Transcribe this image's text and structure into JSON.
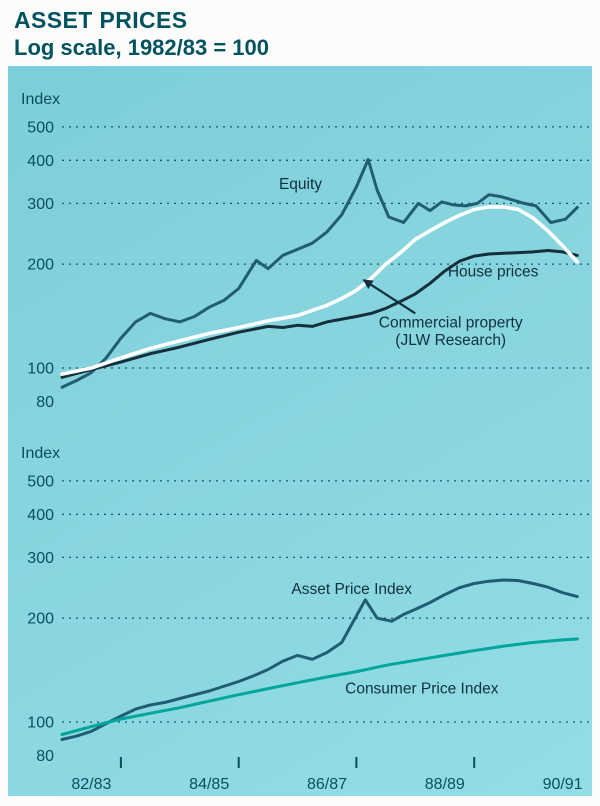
{
  "header": {
    "title": "ASSET PRICES",
    "subtitle": "Log scale, 1982/83 = 100"
  },
  "chart_data": {
    "type": "line",
    "title": "ASSET PRICES",
    "subtitle": "Log scale, 1982/83 = 100",
    "y_scale": "log",
    "base_note": "1982/83 = 100",
    "x_range_years": [
      0,
      9
    ],
    "x_tick_labels": [
      "82/83",
      "84/85",
      "86/87",
      "88/89",
      "90/91"
    ],
    "x_tick_positions": [
      0.5,
      2.5,
      4.5,
      6.5,
      8.5
    ],
    "x_minor_tick_positions": [
      1,
      3,
      5,
      7
    ],
    "legend_position": "inline-annotations",
    "grid": "dashed-horizontal",
    "panels": [
      {
        "id": "asset-classes",
        "ylabel": "Index",
        "ylim": [
          80,
          560
        ],
        "ytick_labels": [
          "500",
          "400",
          "300",
          "200",
          "100",
          "80"
        ],
        "ytick_values": [
          500,
          400,
          300,
          200,
          100,
          80
        ],
        "gridlines_at": [
          500,
          400,
          300,
          200,
          100
        ],
        "series": [
          {
            "name": "Equity",
            "color": "#215d72",
            "x": [
              0,
              0.25,
              0.5,
              0.75,
              1.0,
              1.25,
              1.5,
              1.75,
              2.0,
              2.25,
              2.5,
              2.75,
              3.0,
              3.3,
              3.5,
              3.75,
              4.0,
              4.25,
              4.5,
              4.75,
              5.0,
              5.2,
              5.35,
              5.55,
              5.8,
              6.05,
              6.25,
              6.45,
              6.65,
              6.85,
              7.05,
              7.25,
              7.45,
              7.65,
              7.85,
              8.05,
              8.3,
              8.55,
              8.75
            ],
            "values": [
              88,
              92,
              97,
              107,
              122,
              136,
              144,
              139,
              136,
              141,
              150,
              157,
              170,
              205,
              194,
              212,
              221,
              230,
              248,
              278,
              335,
              402,
              328,
              274,
              264,
              300,
              286,
              303,
              297,
              295,
              300,
              318,
              314,
              307,
              300,
              295,
              264,
              270,
              292
            ]
          },
          {
            "name": "House prices",
            "color": "#15303a",
            "x": [
              0,
              0.5,
              1.0,
              1.5,
              2.0,
              2.5,
              3.0,
              3.5,
              3.75,
              4.0,
              4.25,
              4.5,
              5.0,
              5.25,
              5.5,
              5.75,
              6.0,
              6.25,
              6.5,
              6.75,
              7.0,
              7.25,
              7.5,
              7.75,
              8.0,
              8.25,
              8.5,
              8.75
            ],
            "values": [
              94,
              99,
              104,
              110,
              115,
              121,
              127,
              132,
              131,
              133,
              132,
              136,
              141,
              144,
              149,
              156,
              164,
              176,
              191,
              204,
              211,
              214,
              215,
              216,
              217,
              219,
              217,
              212
            ]
          },
          {
            "name": "Commercial property (JLW Research)",
            "color": "#ffffff",
            "x": [
              0,
              0.5,
              1.0,
              1.5,
              2.0,
              2.5,
              3.0,
              3.5,
              4.0,
              4.5,
              4.75,
              5.0,
              5.25,
              5.5,
              5.75,
              6.0,
              6.25,
              6.5,
              6.75,
              7.0,
              7.25,
              7.5,
              7.75,
              8.0,
              8.25,
              8.5,
              8.75
            ],
            "values": [
              96,
              100,
              107,
              114,
              120,
              126,
              131,
              137,
              142,
              152,
              159,
              168,
              182,
              200,
              216,
              236,
              250,
              264,
              277,
              288,
              293,
              293,
              288,
              272,
              250,
              226,
              203
            ]
          }
        ],
        "annotations": [
          {
            "id": "equity",
            "lines": [
              "Equity"
            ],
            "x": 4.05,
            "value": 330
          },
          {
            "id": "house-prices",
            "lines": [
              "House prices"
            ],
            "x": 7.32,
            "value": 184
          },
          {
            "id": "commercial-property",
            "lines": [
              "Commercial property",
              "(JLW Research)"
            ],
            "x": 6.6,
            "value": 131
          }
        ],
        "arrow": {
          "from": {
            "x": 6.0,
            "value": 144
          },
          "to": {
            "x": 5.12,
            "value": 180
          }
        }
      },
      {
        "id": "aggregate-indices",
        "ylabel": "Index",
        "ylim": [
          80,
          560
        ],
        "ytick_labels": [
          "500",
          "400",
          "300",
          "200",
          "100",
          "80"
        ],
        "ytick_values": [
          500,
          400,
          300,
          200,
          100,
          80
        ],
        "gridlines_at": [
          500,
          400,
          300,
          200,
          100
        ],
        "series": [
          {
            "name": "Asset Price Index",
            "color": "#215d72",
            "x": [
              0,
              0.25,
              0.5,
              0.75,
              1.0,
              1.25,
              1.5,
              1.75,
              2.0,
              2.5,
              3.0,
              3.25,
              3.5,
              3.75,
              4.0,
              4.25,
              4.5,
              4.75,
              5.0,
              5.15,
              5.35,
              5.6,
              5.8,
              6.0,
              6.25,
              6.5,
              6.75,
              7.0,
              7.25,
              7.5,
              7.75,
              8.0,
              8.25,
              8.5,
              8.75
            ],
            "values": [
              89,
              91,
              94,
              99,
              104,
              109,
              112,
              114,
              117,
              123,
              131,
              136,
              142,
              150,
              156,
              152,
              159,
              170,
              203,
              226,
              200,
              196,
              205,
              212,
              222,
              234,
              245,
              252,
              256,
              258,
              257,
              252,
              246,
              237,
              231
            ]
          },
          {
            "name": "Consumer Price Index",
            "color": "#00a69c",
            "x": [
              0,
              0.5,
              1.0,
              1.5,
              2.0,
              2.5,
              3.0,
              3.5,
              4.0,
              4.5,
              5.0,
              5.5,
              6.0,
              6.5,
              7.0,
              7.5,
              8.0,
              8.5,
              8.75
            ],
            "values": [
              92,
              97,
              102,
              106,
              110,
              115,
              120,
              125,
              130,
              135,
              140,
              146,
              151,
              156,
              161,
              166,
              170,
              173,
              174
            ]
          }
        ],
        "annotations": [
          {
            "id": "asset-price-index",
            "lines": [
              "Asset Price Index"
            ],
            "x": 4.92,
            "value": 235
          },
          {
            "id": "consumer-price-index",
            "lines": [
              "Consumer Price Index"
            ],
            "x": 6.11,
            "value": 121
          }
        ]
      }
    ]
  }
}
